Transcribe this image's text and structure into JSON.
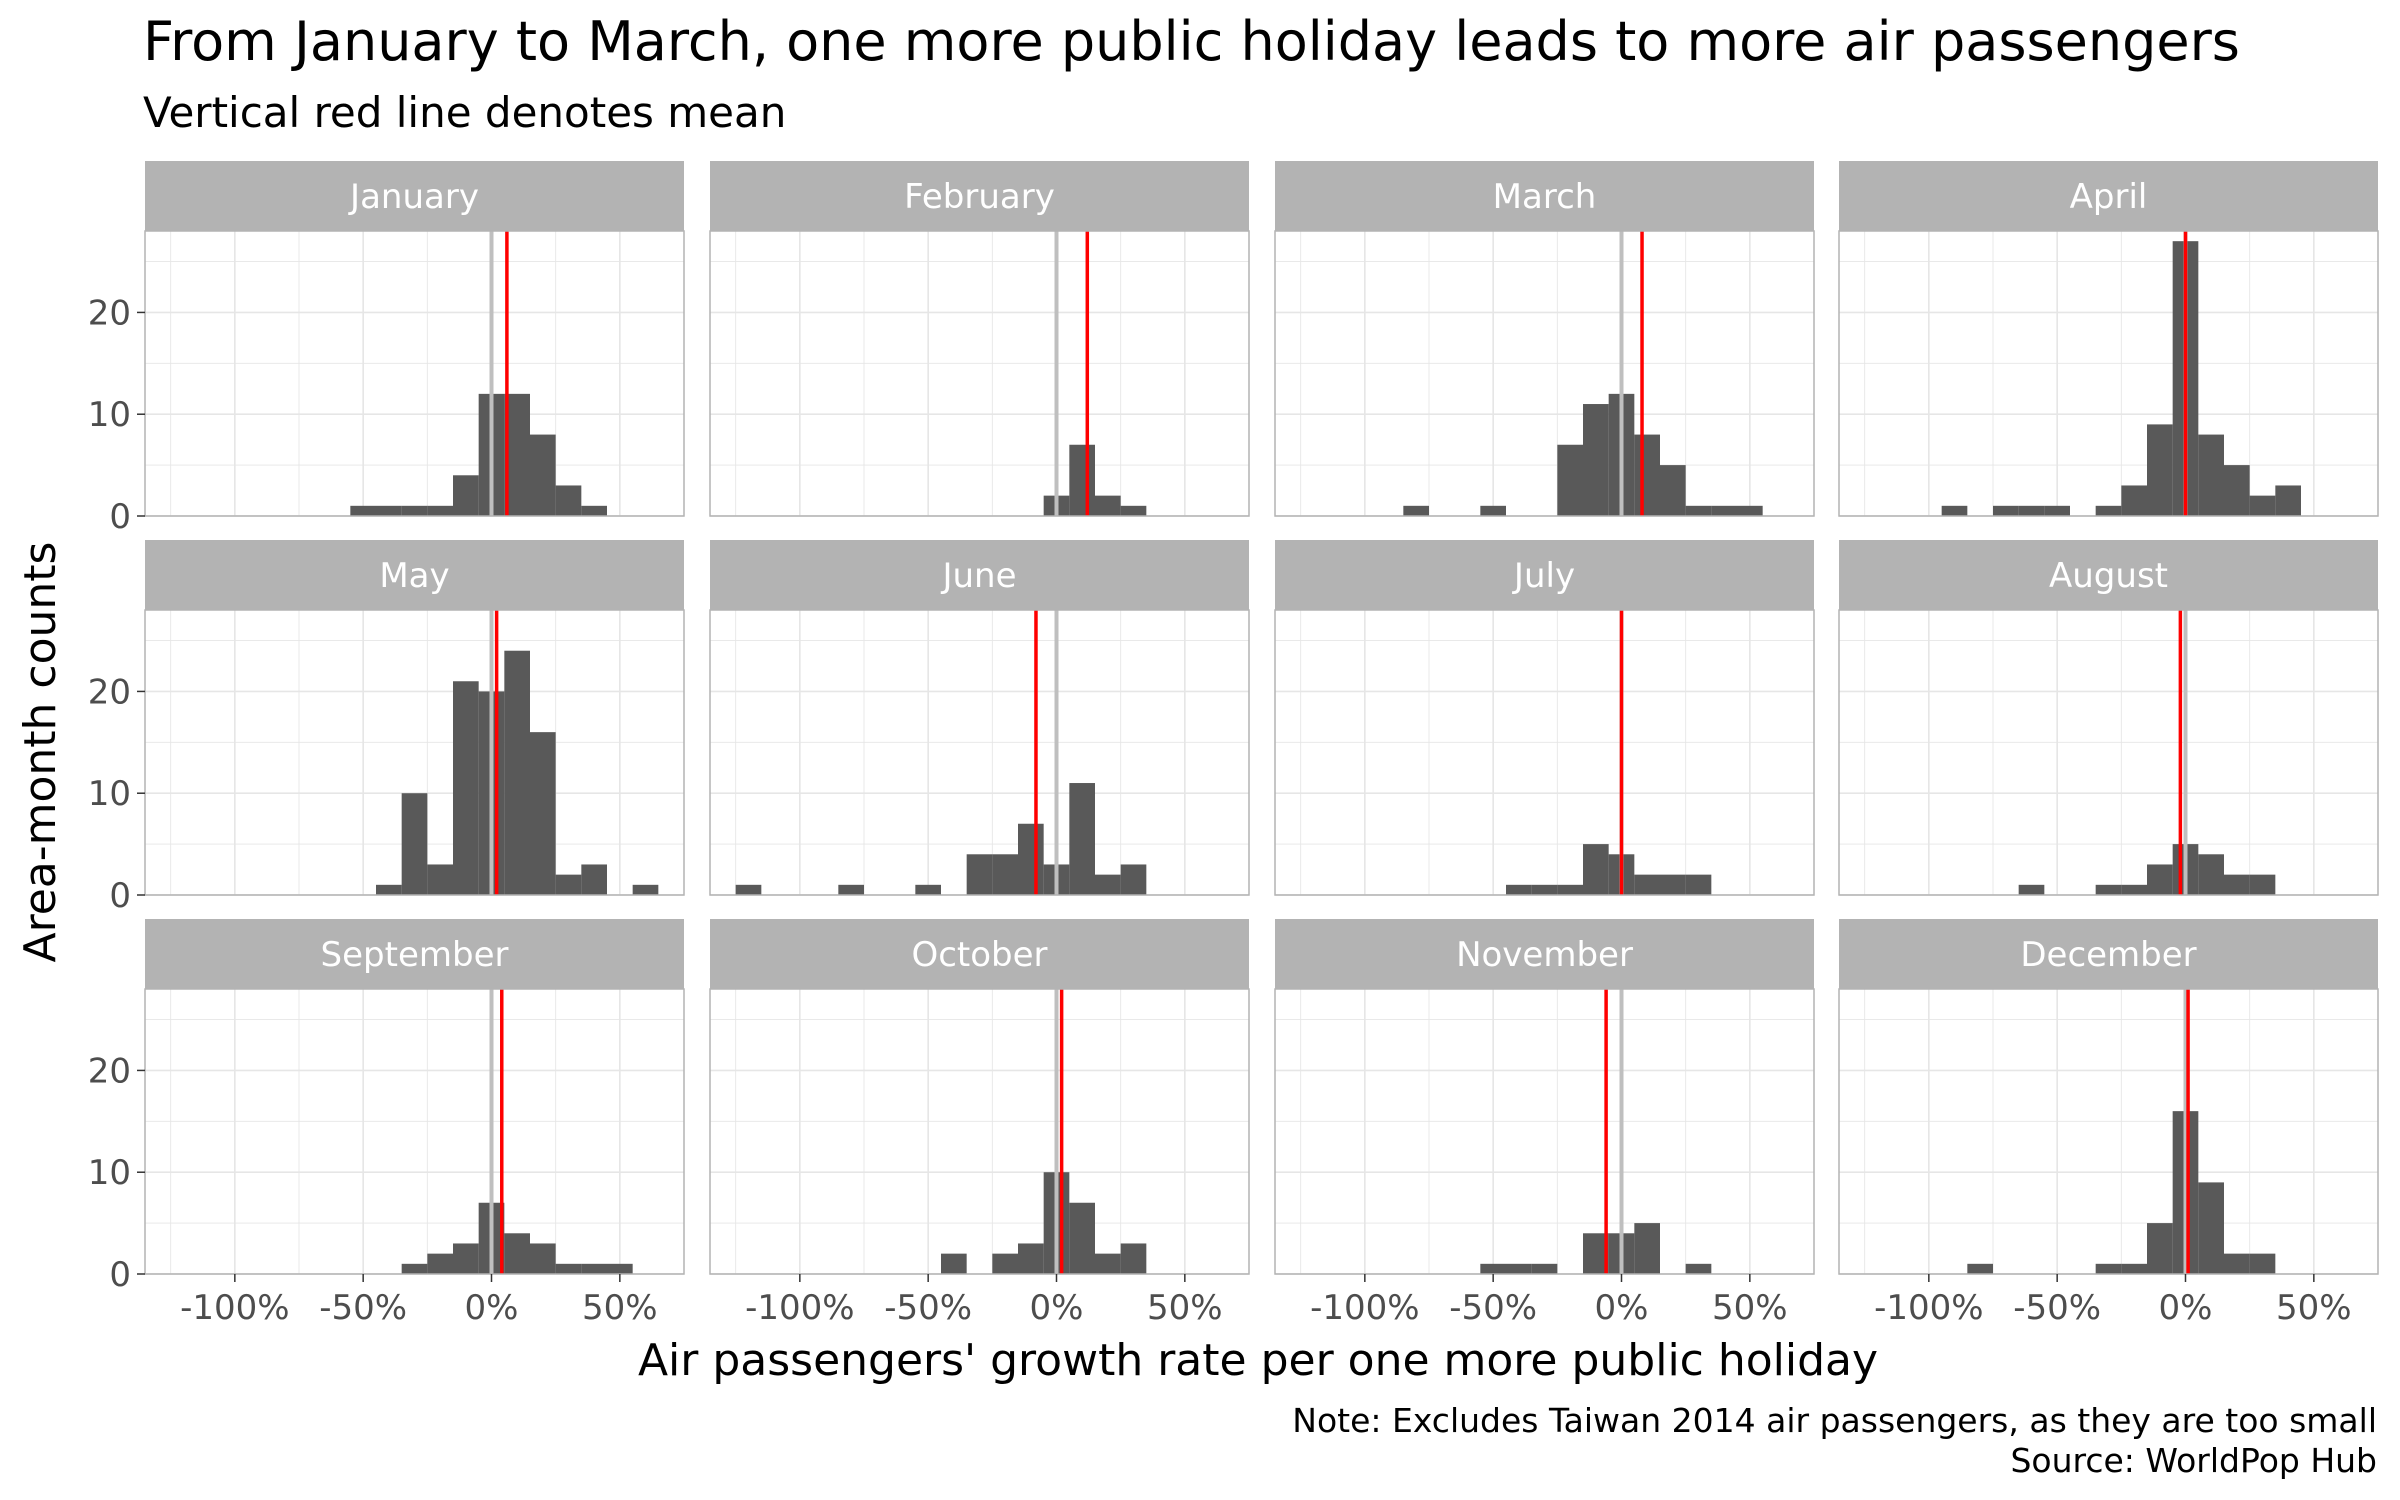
{
  "title": "From January to March, one more public holiday leads to more air passengers",
  "subtitle": "Vertical red line denotes mean",
  "xlabel": "Air passengers' growth rate per one more public holiday",
  "ylabel": "Area-month counts",
  "caption_lines": [
    "Note: Excludes Taiwan 2014 air passengers, as they are too small",
    "Source: WorldPop Hub"
  ],
  "colors": {
    "bar": "#595959",
    "mean_line": "#ff0000",
    "zero_line": "#bfbfbf",
    "strip": "#b3b3b3",
    "grid": "#e6e6e6",
    "panel_border": "#b3b3b3"
  },
  "chart_data": {
    "type": "bar",
    "layout": "facet-grid-3x4",
    "bin_width_pct": 10,
    "xlim": [
      -135,
      75
    ],
    "ylim": [
      0,
      28
    ],
    "x_ticks": [
      -100,
      -50,
      0,
      50
    ],
    "x_tick_labels": [
      "-100%",
      "-50%",
      "0%",
      "50%"
    ],
    "y_ticks": [
      0,
      10,
      20
    ],
    "y_tick_labels": [
      "0",
      "10",
      "20"
    ],
    "grid": true,
    "panels": [
      {
        "label": "January",
        "mean": 6,
        "bins": [
          [
            -50,
            1
          ],
          [
            -40,
            1
          ],
          [
            -30,
            1
          ],
          [
            -20,
            1
          ],
          [
            -10,
            4
          ],
          [
            0,
            12
          ],
          [
            10,
            12
          ],
          [
            20,
            8
          ],
          [
            30,
            3
          ],
          [
            40,
            1
          ]
        ]
      },
      {
        "label": "February",
        "mean": 12,
        "bins": [
          [
            0,
            2
          ],
          [
            10,
            7
          ],
          [
            20,
            2
          ],
          [
            30,
            1
          ]
        ]
      },
      {
        "label": "March",
        "mean": 8,
        "bins": [
          [
            -80,
            1
          ],
          [
            -50,
            1
          ],
          [
            -30,
            0
          ],
          [
            -20,
            7
          ],
          [
            -10,
            11
          ],
          [
            0,
            12
          ],
          [
            10,
            8
          ],
          [
            20,
            5
          ],
          [
            30,
            1
          ],
          [
            40,
            1
          ],
          [
            50,
            1
          ]
        ]
      },
      {
        "label": "April",
        "mean": 0,
        "bins": [
          [
            -90,
            1
          ],
          [
            -70,
            1
          ],
          [
            -60,
            1
          ],
          [
            -50,
            1
          ],
          [
            -30,
            1
          ],
          [
            -20,
            3
          ],
          [
            -10,
            9
          ],
          [
            0,
            27
          ],
          [
            10,
            8
          ],
          [
            20,
            5
          ],
          [
            30,
            2
          ],
          [
            40,
            3
          ]
        ]
      },
      {
        "label": "May",
        "mean": 2,
        "bins": [
          [
            -40,
            1
          ],
          [
            -30,
            10
          ],
          [
            -20,
            3
          ],
          [
            -10,
            21
          ],
          [
            0,
            20
          ],
          [
            10,
            24
          ],
          [
            20,
            16
          ],
          [
            30,
            2
          ],
          [
            40,
            3
          ],
          [
            60,
            1
          ]
        ]
      },
      {
        "label": "June",
        "mean": -8,
        "bins": [
          [
            -120,
            1
          ],
          [
            -80,
            1
          ],
          [
            -50,
            1
          ],
          [
            -30,
            4
          ],
          [
            -20,
            4
          ],
          [
            -10,
            7
          ],
          [
            0,
            3
          ],
          [
            10,
            11
          ],
          [
            20,
            2
          ],
          [
            30,
            3
          ]
        ]
      },
      {
        "label": "July",
        "mean": 0,
        "bins": [
          [
            -40,
            1
          ],
          [
            -30,
            1
          ],
          [
            -20,
            1
          ],
          [
            -10,
            5
          ],
          [
            0,
            4
          ],
          [
            10,
            2
          ],
          [
            20,
            2
          ],
          [
            30,
            2
          ]
        ]
      },
      {
        "label": "August",
        "mean": -2,
        "bins": [
          [
            -60,
            1
          ],
          [
            -30,
            1
          ],
          [
            -20,
            1
          ],
          [
            -10,
            3
          ],
          [
            0,
            5
          ],
          [
            10,
            4
          ],
          [
            20,
            2
          ],
          [
            30,
            2
          ]
        ]
      },
      {
        "label": "September",
        "mean": 4,
        "bins": [
          [
            -30,
            1
          ],
          [
            -20,
            2
          ],
          [
            -10,
            3
          ],
          [
            0,
            7
          ],
          [
            10,
            4
          ],
          [
            20,
            3
          ],
          [
            30,
            1
          ],
          [
            40,
            1
          ],
          [
            50,
            1
          ]
        ]
      },
      {
        "label": "October",
        "mean": 2,
        "bins": [
          [
            -40,
            2
          ],
          [
            -20,
            2
          ],
          [
            -10,
            3
          ],
          [
            0,
            10
          ],
          [
            10,
            7
          ],
          [
            20,
            2
          ],
          [
            30,
            3
          ]
        ]
      },
      {
        "label": "November",
        "mean": -6,
        "bins": [
          [
            -50,
            1
          ],
          [
            -40,
            1
          ],
          [
            -30,
            1
          ],
          [
            -10,
            4
          ],
          [
            0,
            4
          ],
          [
            10,
            5
          ],
          [
            30,
            1
          ]
        ]
      },
      {
        "label": "December",
        "mean": 1,
        "bins": [
          [
            -80,
            1
          ],
          [
            -30,
            1
          ],
          [
            -20,
            1
          ],
          [
            -10,
            5
          ],
          [
            0,
            16
          ],
          [
            10,
            9
          ],
          [
            20,
            2
          ],
          [
            30,
            2
          ]
        ]
      }
    ]
  }
}
